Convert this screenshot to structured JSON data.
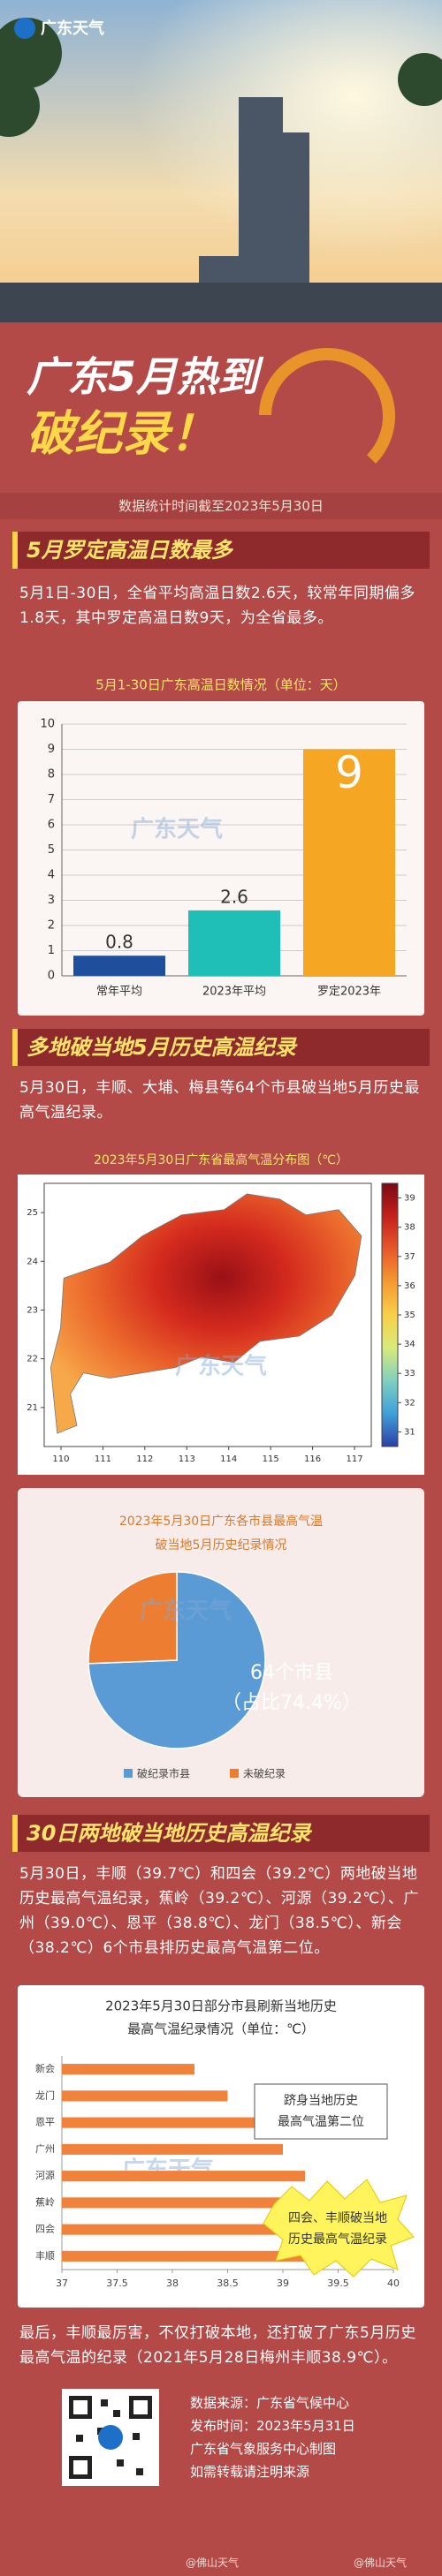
{
  "header": {
    "logo": "广东天气",
    "title_line1": "广东5月热到",
    "title_line2": "破纪录！",
    "note": "数据统计时间截至2023年5月30日"
  },
  "sections": [
    {
      "heading": "5月罗定高温日数最多",
      "text": "5月1日-30日，全省平均高温日数2.6天，较常年同期偏多1.8天，其中罗定高温日数9天，为全省最多。"
    },
    {
      "heading": "多地破当地5月历史高温纪录",
      "text": "5月30日，丰顺、大埔、梅县等64个市县破当地5月历史最高气温纪录。"
    },
    {
      "heading": "30日两地破当地历史高温纪录",
      "text": "5月30日，丰顺（39.7℃）和四会（39.2℃）两地破当地历史最高气温纪录，蕉岭（39.2℃）、河源（39.2℃）、广州（39.0℃）、恩平（38.8℃）、龙门（38.5℃）、新会（38.2℃）6个市县排历史最高气温第二位。"
    }
  ],
  "closing": "最后，丰顺最厉害，不仅打破本地，还打破了广东5月历史最高气温的纪录（2021年5月28日梅州丰顺38.9℃）。",
  "footer": {
    "lines": [
      "数据来源：广东省气候中心",
      "发布时间：2023年5月31日",
      "广东省气象服务中心制图",
      "如需转载请注明来源"
    ],
    "weibo": [
      "@佛山天气",
      "@佛山天气"
    ]
  },
  "chart_data": [
    {
      "type": "bar",
      "title": "5月1-30日广东高温日数情况（单位：天）",
      "categories": [
        "常年平均",
        "2023年平均",
        "罗定2023年"
      ],
      "values": [
        0.8,
        2.6,
        9
      ],
      "colors": [
        "#1f4e9c",
        "#1fbfb8",
        "#f5a623"
      ],
      "ylim": [
        0,
        10
      ],
      "yticks": [
        0,
        1,
        2,
        3,
        4,
        5,
        6,
        7,
        8,
        9,
        10
      ],
      "grid": true
    },
    {
      "type": "map",
      "title": "2023年5月30日广东省最高气温分布图（℃）",
      "xlim": [
        109.6,
        117.4
      ],
      "ylim": [
        20.2,
        25.6
      ],
      "xticks": [
        110,
        111,
        112,
        113,
        114,
        115,
        116,
        117
      ],
      "yticks": [
        21,
        22,
        23,
        24,
        25
      ],
      "clim": [
        30.5,
        39.5
      ],
      "colorbar_ticks": [
        31,
        32,
        33,
        34,
        35,
        36,
        37,
        38,
        39
      ],
      "colormap": [
        "#2b3fa8",
        "#3fa0d8",
        "#7fd0c0",
        "#d8ea7a",
        "#f8d048",
        "#f59a32",
        "#e8582a",
        "#c4201c",
        "#7a0a12"
      ]
    },
    {
      "type": "pie",
      "title": [
        "2023年5月30日广东各市县最高气温",
        "破当地5月历史纪录情况"
      ],
      "categories": [
        "破纪录市县",
        "未破纪录"
      ],
      "values": [
        74.4,
        25.6
      ],
      "colors": [
        "#5b9bd5",
        "#ed7d31"
      ],
      "annotation": [
        "64个市县",
        "（占比74.4%）"
      ]
    },
    {
      "type": "hbar",
      "title": [
        "2023年5月30日部分市县刷新当地历史",
        "最高气温纪录情况（单位：℃）"
      ],
      "categories": [
        "新会",
        "龙门",
        "恩平",
        "广州",
        "河源",
        "蕉岭",
        "四会",
        "丰顺"
      ],
      "values": [
        38.2,
        38.5,
        38.8,
        39.0,
        39.2,
        39.2,
        39.2,
        39.7
      ],
      "color": "#f0823c",
      "xlim": [
        37,
        40
      ],
      "xticks": [
        37,
        37.5,
        38,
        38.5,
        39,
        39.5,
        40
      ],
      "annotations": [
        [
          "跻身当地历史",
          "最高气温第二位"
        ],
        [
          "四会、丰顺破当地",
          "历史最高气温纪录"
        ]
      ]
    }
  ]
}
